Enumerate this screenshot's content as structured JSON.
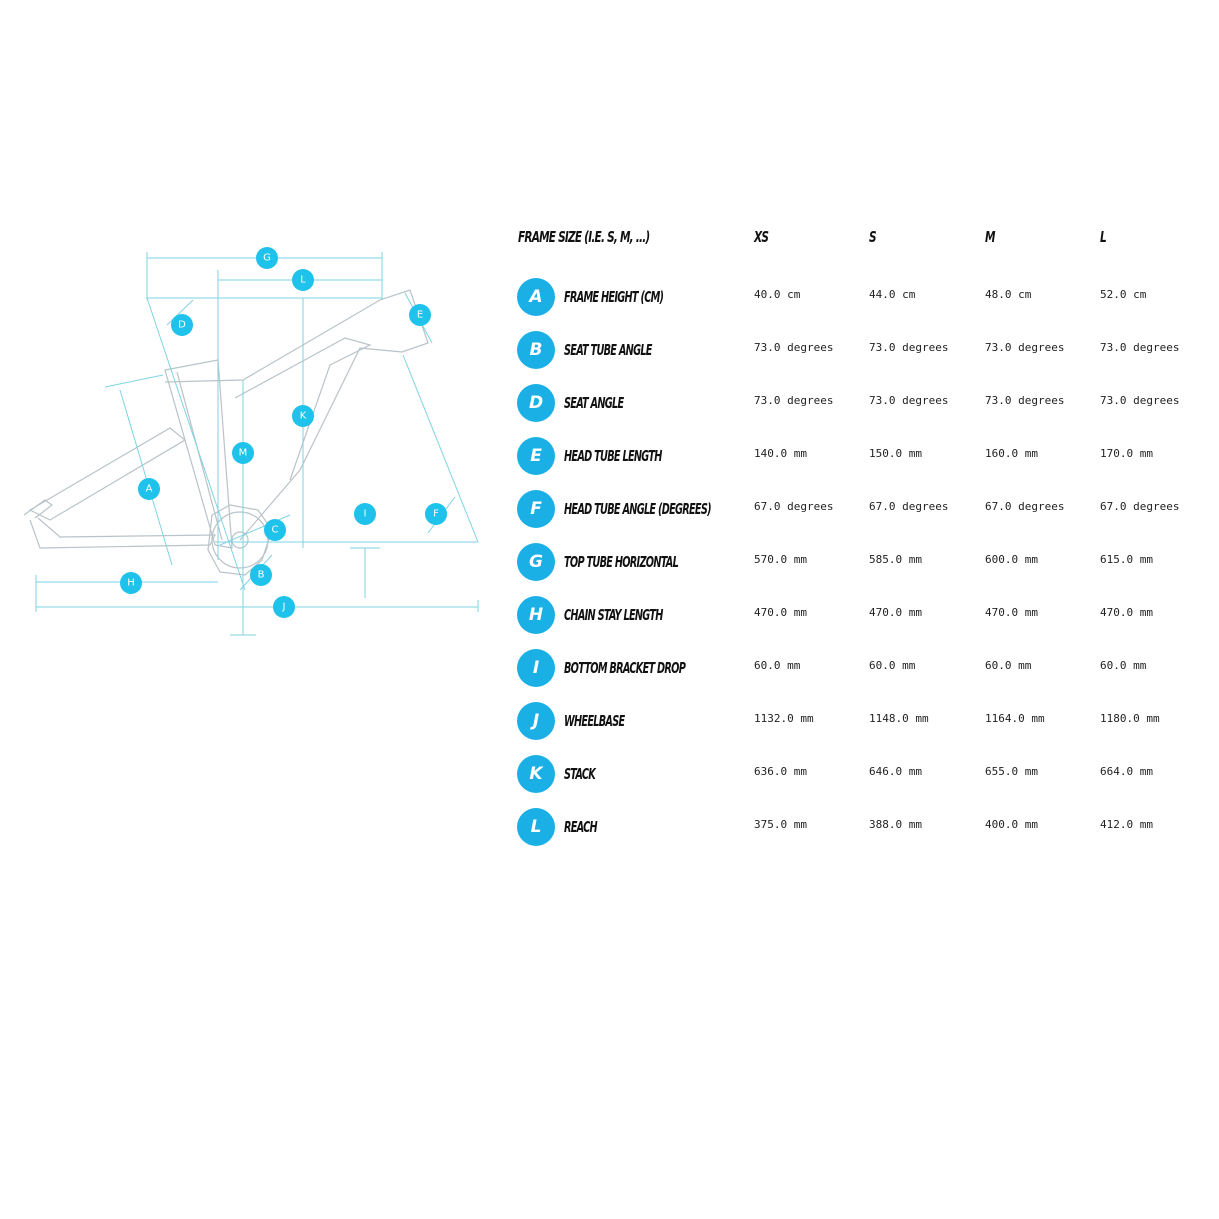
{
  "diagram": {
    "markers": [
      "G",
      "L",
      "D",
      "E",
      "K",
      "M",
      "A",
      "I",
      "F",
      "C",
      "B",
      "H",
      "J"
    ]
  },
  "table": {
    "header": {
      "label": "FRAME SIZE (I.E. S, M, ...)",
      "sizes": [
        "XS",
        "S",
        "M",
        "L"
      ]
    },
    "rows": [
      {
        "letter": "A",
        "label": "FRAME HEIGHT (CM)",
        "values": [
          "40.0 cm",
          "44.0 cm",
          "48.0 cm",
          "52.0 cm"
        ]
      },
      {
        "letter": "B",
        "label": "SEAT TUBE ANGLE",
        "values": [
          "73.0 degrees",
          "73.0 degrees",
          "73.0 degrees",
          "73.0 degrees"
        ]
      },
      {
        "letter": "D",
        "label": "SEAT ANGLE",
        "values": [
          "73.0 degrees",
          "73.0 degrees",
          "73.0 degrees",
          "73.0 degrees"
        ]
      },
      {
        "letter": "E",
        "label": "HEAD TUBE LENGTH",
        "values": [
          "140.0 mm",
          "150.0 mm",
          "160.0 mm",
          "170.0 mm"
        ]
      },
      {
        "letter": "F",
        "label": "HEAD TUBE ANGLE (DEGREES)",
        "values": [
          "67.0 degrees",
          "67.0 degrees",
          "67.0 degrees",
          "67.0 degrees"
        ]
      },
      {
        "letter": "G",
        "label": "TOP TUBE HORIZONTAL",
        "values": [
          "570.0 mm",
          "585.0 mm",
          "600.0 mm",
          "615.0 mm"
        ]
      },
      {
        "letter": "H",
        "label": "CHAIN STAY LENGTH",
        "values": [
          "470.0 mm",
          "470.0 mm",
          "470.0 mm",
          "470.0 mm"
        ]
      },
      {
        "letter": "I",
        "label": "BOTTOM BRACKET DROP",
        "values": [
          "60.0 mm",
          "60.0 mm",
          "60.0 mm",
          "60.0 mm"
        ]
      },
      {
        "letter": "J",
        "label": "WHEELBASE",
        "values": [
          "1132.0 mm",
          "1148.0 mm",
          "1164.0 mm",
          "1180.0 mm"
        ]
      },
      {
        "letter": "K",
        "label": "STACK",
        "values": [
          "636.0 mm",
          "646.0 mm",
          "655.0 mm",
          "664.0 mm"
        ]
      },
      {
        "letter": "L",
        "label": "REACH",
        "values": [
          "375.0 mm",
          "388.0 mm",
          "400.0 mm",
          "412.0 mm"
        ]
      }
    ]
  }
}
